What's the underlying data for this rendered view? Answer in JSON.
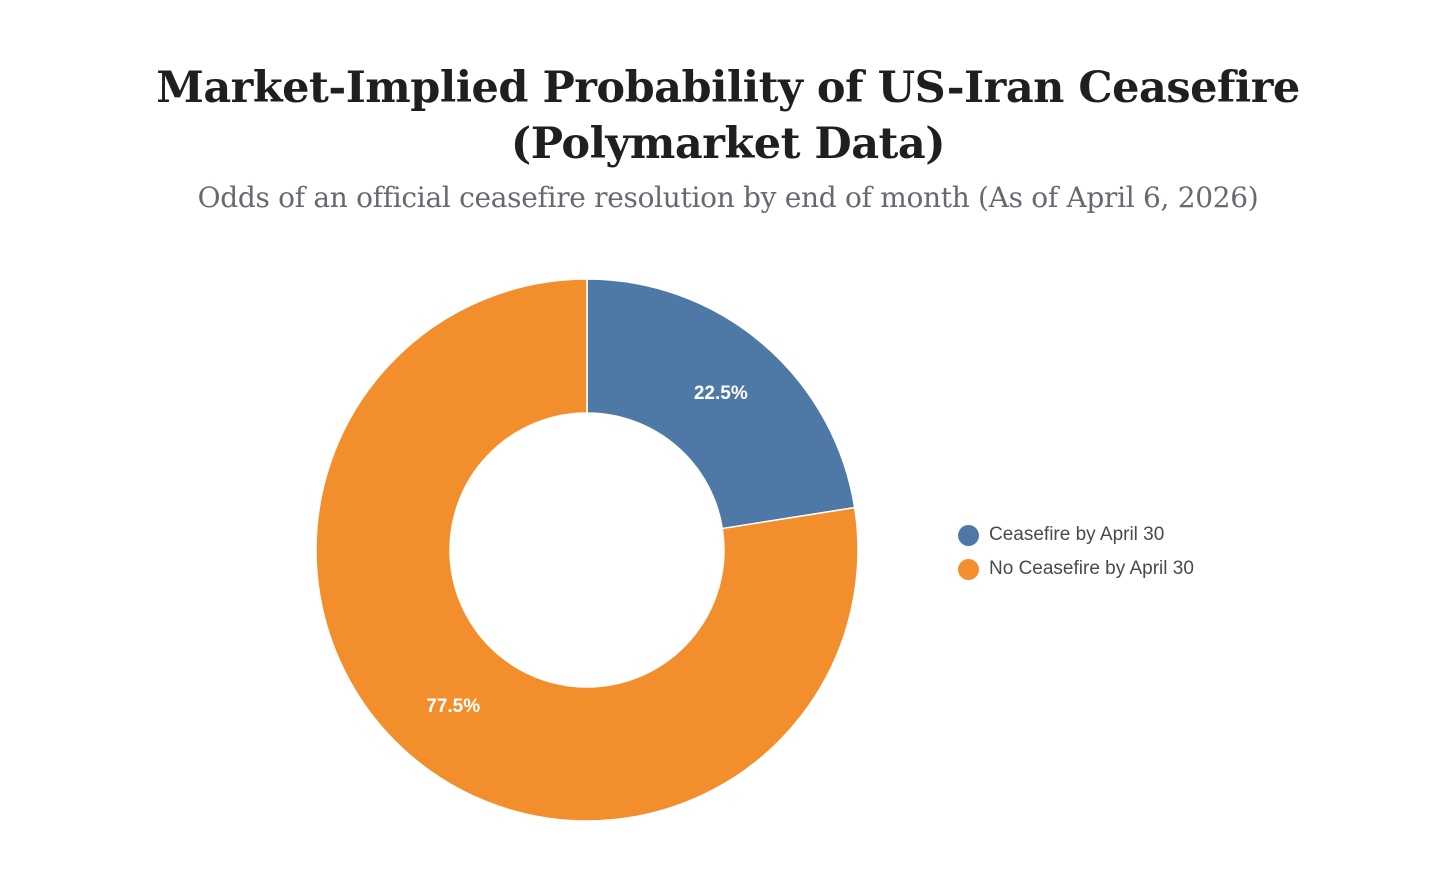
{
  "chart_data": {
    "type": "pie",
    "donut": true,
    "title_lines": [
      "Market-Implied Probability of US-Iran Ceasefire",
      "(Polymarket Data)"
    ],
    "subtitle": "Odds of an official ceasefire resolution by end of month (As of April 6, 2026)",
    "legend_position": "right",
    "slices": [
      {
        "label": "Ceasefire by April 30",
        "value": 22.5,
        "display": "22.5%",
        "color": "#4e79a7"
      },
      {
        "label": "No Ceasefire by April 30",
        "value": 77.5,
        "display": "77.5%",
        "color": "#f28e2b"
      }
    ]
  }
}
